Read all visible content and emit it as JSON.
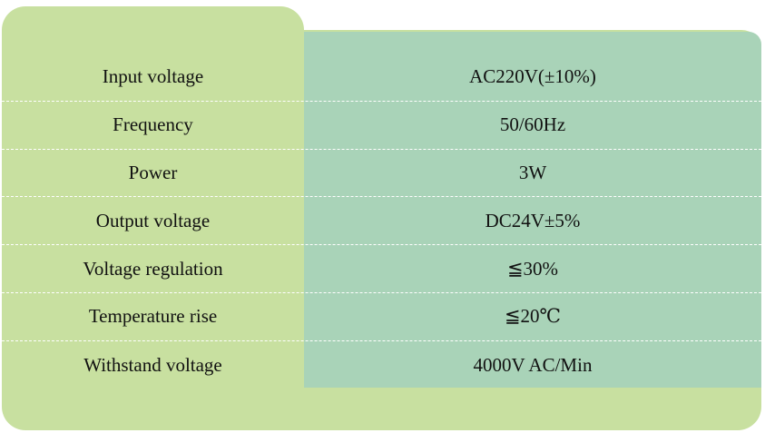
{
  "colors": {
    "left_panel": "#c8e0a0",
    "right_panel": "#a9d3b8",
    "divider": "#ffffff",
    "text": "#111111"
  },
  "specs": [
    {
      "name": "Input voltage",
      "value": "AC220V(±10%)"
    },
    {
      "name": "Frequency",
      "value": "50/60Hz"
    },
    {
      "name": "Power",
      "value": "3W"
    },
    {
      "name": "Output voltage",
      "value": "DC24V±5%"
    },
    {
      "name": "Voltage regulation",
      "value": "≦30%"
    },
    {
      "name": "Temperature rise",
      "value": "≦20℃"
    },
    {
      "name": "Withstand voltage",
      "value": "4000V AC/Min"
    }
  ]
}
